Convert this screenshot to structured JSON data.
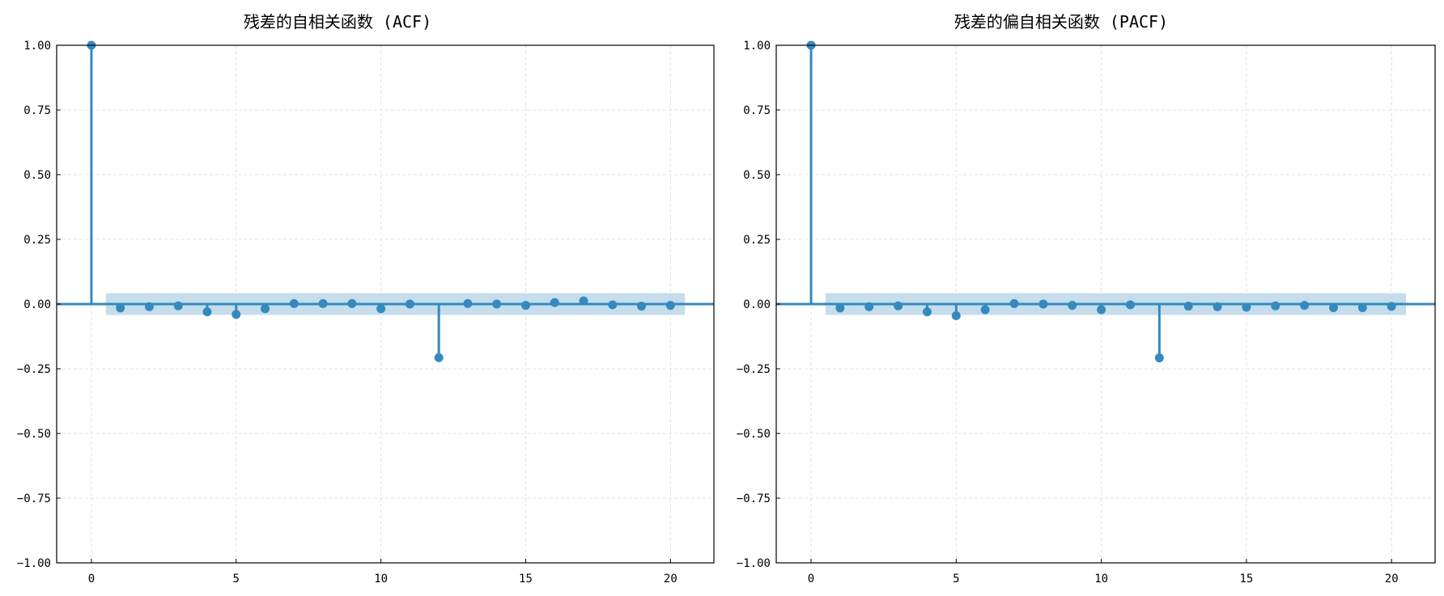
{
  "chart_data": [
    {
      "type": "stem",
      "title": "残差的自相关函数 (ACF)",
      "xlim": [
        -1.2,
        21.5
      ],
      "ylim": [
        -1.0,
        1.0
      ],
      "xticks": [
        0,
        5,
        10,
        15,
        20
      ],
      "xtick_labels": [
        "0",
        "5",
        "10",
        "15",
        "20"
      ],
      "yticks": [
        1.0,
        0.75,
        0.5,
        0.25,
        0.0,
        -0.25,
        -0.5,
        -0.75,
        -1.0
      ],
      "ytick_labels": [
        "1.00",
        "0.75",
        "0.50",
        "0.25",
        "0.00",
        "−0.25",
        "−0.50",
        "−0.75",
        "−1.00"
      ],
      "grid": true,
      "confidence_band": {
        "x_range": [
          0.5,
          20.5
        ],
        "bounds": [
          -0.042,
          0.042
        ]
      },
      "x": [
        0,
        1,
        2,
        3,
        4,
        5,
        6,
        7,
        8,
        9,
        10,
        11,
        12,
        13,
        14,
        15,
        16,
        17,
        18,
        19,
        20
      ],
      "values": [
        1.0,
        -0.015,
        -0.01,
        -0.007,
        -0.03,
        -0.04,
        -0.018,
        0.002,
        0.002,
        0.002,
        -0.018,
        0.0,
        -0.207,
        0.002,
        0.0,
        -0.005,
        0.006,
        0.012,
        -0.003,
        -0.008,
        -0.005
      ],
      "color": "#348abd",
      "band_color": "#c6dded"
    },
    {
      "type": "stem",
      "title": "残差的偏自相关函数 (PACF)",
      "xlim": [
        -1.2,
        21.5
      ],
      "ylim": [
        -1.0,
        1.0
      ],
      "xticks": [
        0,
        5,
        10,
        15,
        20
      ],
      "xtick_labels": [
        "0",
        "5",
        "10",
        "15",
        "20"
      ],
      "yticks": [
        1.0,
        0.75,
        0.5,
        0.25,
        0.0,
        -0.25,
        -0.5,
        -0.75,
        -1.0
      ],
      "ytick_labels": [
        "1.00",
        "0.75",
        "0.50",
        "0.25",
        "0.00",
        "−0.25",
        "−0.50",
        "−0.75",
        "−1.00"
      ],
      "grid": true,
      "confidence_band": {
        "x_range": [
          0.5,
          20.5
        ],
        "bounds": [
          -0.042,
          0.042
        ]
      },
      "x": [
        0,
        1,
        2,
        3,
        4,
        5,
        6,
        7,
        8,
        9,
        10,
        11,
        12,
        13,
        14,
        15,
        16,
        17,
        18,
        19,
        20
      ],
      "values": [
        1.0,
        -0.015,
        -0.01,
        -0.007,
        -0.03,
        -0.045,
        -0.022,
        0.002,
        0.0,
        -0.005,
        -0.022,
        -0.003,
        -0.208,
        -0.008,
        -0.01,
        -0.012,
        -0.007,
        -0.005,
        -0.014,
        -0.014,
        -0.009
      ],
      "color": "#348abd",
      "band_color": "#c6dded"
    }
  ]
}
